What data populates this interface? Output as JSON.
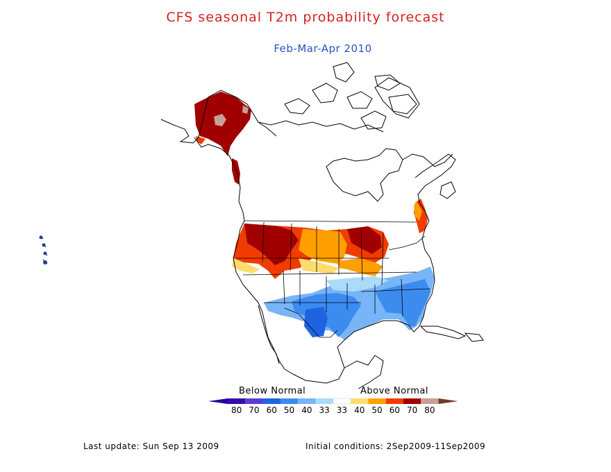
{
  "title": "CFS seasonal T2m probability forecast",
  "subtitle": "Feb-Mar-Apr 2010",
  "legend": {
    "below_label": "Below Normal",
    "above_label": "Above Normal",
    "bins": [
      {
        "label": "80",
        "color": "#3a0ab0"
      },
      {
        "label": "70",
        "color": "#5a3ccf"
      },
      {
        "label": "60",
        "color": "#1e64e0"
      },
      {
        "label": "50",
        "color": "#3c8cf0"
      },
      {
        "label": "40",
        "color": "#78b4f8"
      },
      {
        "label": "33",
        "color": "#aadcfa"
      },
      {
        "label": "33",
        "color": "#ffffff"
      },
      {
        "label": "40",
        "color": "#ffdc6e"
      },
      {
        "label": "50",
        "color": "#ffa000"
      },
      {
        "label": "60",
        "color": "#f03c00"
      },
      {
        "label": "70",
        "color": "#a00000"
      },
      {
        "label": "80",
        "color": "#c8a096"
      }
    ],
    "end_colors": {
      "low": "#28009a",
      "high": "#6e3c28"
    }
  },
  "footer": {
    "last_update": "Last update: Sun Sep 13 2009",
    "initial_conditions": "Initial conditions: 2Sep2009-11Sep2009"
  }
}
